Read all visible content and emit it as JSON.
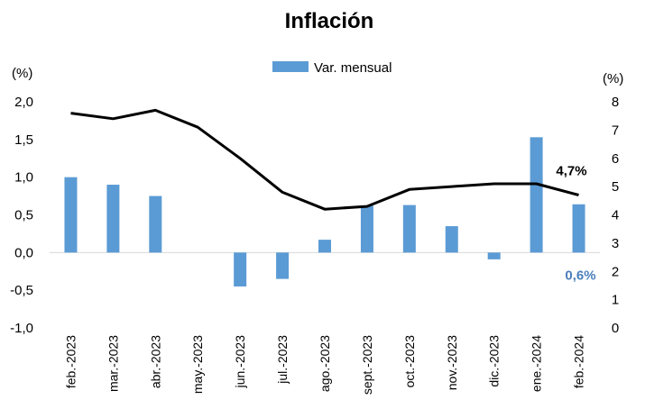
{
  "colors": {
    "bar": "#5b9bd5",
    "line": "#000000",
    "bar_label": "#4a7ebb"
  },
  "chart_data": {
    "type": "bar",
    "title": "Inflación",
    "categories": [
      "feb.-2023",
      "mar.-2023",
      "abr.-2023",
      "may.-2023",
      "jun.-2023",
      "jul.-2023",
      "ago.-2023",
      "sept.-2023",
      "oct.-2023",
      "nov.-2023",
      "dic.-2023",
      "ene.-2024",
      "feb.-2024"
    ],
    "series": [
      {
        "name": "Var. mensual",
        "type": "bar",
        "axis": "left",
        "values": [
          1.0,
          0.9,
          0.75,
          0.0,
          -0.45,
          -0.35,
          0.17,
          0.62,
          0.63,
          0.35,
          -0.09,
          1.53,
          0.64
        ]
      },
      {
        "type": "line",
        "axis": "right",
        "values": [
          7.6,
          7.4,
          7.7,
          7.1,
          6.0,
          4.8,
          4.2,
          4.3,
          4.9,
          5.0,
          5.1,
          5.1,
          4.7
        ]
      }
    ],
    "y_left": {
      "unit_label": "(%)",
      "ylim": [
        -1.0,
        2.0
      ],
      "ticks": [
        "2,0",
        "1,5",
        "1,0",
        "0,5",
        "0,0",
        "-0,5",
        "-1,0"
      ],
      "tick_values": [
        2.0,
        1.5,
        1.0,
        0.5,
        0.0,
        -0.5,
        -1.0
      ]
    },
    "y_right": {
      "unit_label": "(%)",
      "ylim": [
        0,
        8
      ],
      "ticks": [
        "8",
        "7",
        "6",
        "5",
        "4",
        "3",
        "2",
        "1",
        "0"
      ],
      "tick_values": [
        8,
        7,
        6,
        5,
        4,
        3,
        2,
        1,
        0
      ]
    },
    "annotations": {
      "line_last": "4,7%",
      "bar_last": "0,6%"
    },
    "legend": {
      "position": "top"
    },
    "grid": false
  }
}
